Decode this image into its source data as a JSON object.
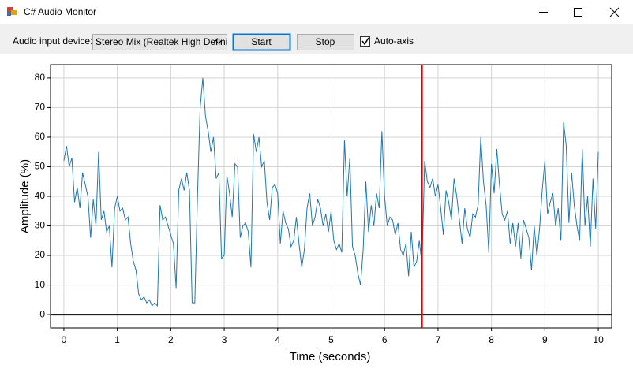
{
  "window": {
    "title": "C# Audio Monitor"
  },
  "controls": {
    "device_label": "Audio input device:",
    "device_value": "Stereo Mix (Realtek High Defini",
    "start": "Start",
    "stop": "Stop",
    "auto_axis": "Auto-axis",
    "auto_axis_checked": true
  },
  "chart_data": {
    "type": "line",
    "xlabel": "Time (seconds)",
    "ylabel": "Amplitude (%)",
    "xlim": [
      -0.25,
      10.25
    ],
    "ylim": [
      -4.5,
      84.5
    ],
    "xticks": [
      0,
      1,
      2,
      3,
      4,
      5,
      6,
      7,
      8,
      9,
      10
    ],
    "yticks": [
      0,
      10,
      20,
      30,
      40,
      50,
      60,
      70,
      80
    ],
    "grid": true,
    "marker_x": 6.7,
    "marker_color": "#e00000",
    "x": [
      0,
      0.05,
      0.1,
      0.15,
      0.2,
      0.25,
      0.3,
      0.35,
      0.4,
      0.45,
      0.5,
      0.55,
      0.6,
      0.65,
      0.7,
      0.75,
      0.8,
      0.85,
      0.9,
      0.95,
      1,
      1.05,
      1.1,
      1.15,
      1.2,
      1.25,
      1.3,
      1.35,
      1.4,
      1.45,
      1.5,
      1.55,
      1.6,
      1.65,
      1.7,
      1.75,
      1.8,
      1.85,
      1.9,
      1.95,
      2,
      2.05,
      2.1,
      2.15,
      2.2,
      2.25,
      2.3,
      2.35,
      2.4,
      2.45,
      2.5,
      2.55,
      2.6,
      2.65,
      2.7,
      2.75,
      2.8,
      2.85,
      2.9,
      2.95,
      3,
      3.05,
      3.1,
      3.15,
      3.2,
      3.25,
      3.3,
      3.35,
      3.4,
      3.45,
      3.5,
      3.55,
      3.6,
      3.65,
      3.7,
      3.75,
      3.8,
      3.85,
      3.9,
      3.95,
      4,
      4.05,
      4.1,
      4.15,
      4.2,
      4.25,
      4.3,
      4.35,
      4.4,
      4.45,
      4.5,
      4.55,
      4.6,
      4.65,
      4.7,
      4.75,
      4.8,
      4.85,
      4.9,
      4.95,
      5,
      5.05,
      5.1,
      5.15,
      5.2,
      5.25,
      5.3,
      5.35,
      5.4,
      5.45,
      5.5,
      5.55,
      5.6,
      5.65,
      5.7,
      5.75,
      5.8,
      5.85,
      5.9,
      5.95,
      6,
      6.05,
      6.1,
      6.15,
      6.2,
      6.25,
      6.3,
      6.35,
      6.4,
      6.45,
      6.5,
      6.55,
      6.6,
      6.65,
      6.7,
      6.75,
      6.8,
      6.85,
      6.9,
      6.95,
      7,
      7.05,
      7.1,
      7.15,
      7.2,
      7.25,
      7.3,
      7.35,
      7.4,
      7.45,
      7.5,
      7.55,
      7.6,
      7.65,
      7.7,
      7.75,
      7.8,
      7.85,
      7.9,
      7.95,
      8,
      8.05,
      8.1,
      8.15,
      8.2,
      8.25,
      8.3,
      8.35,
      8.4,
      8.45,
      8.5,
      8.55,
      8.6,
      8.65,
      8.7,
      8.75,
      8.8,
      8.85,
      8.9,
      8.95,
      9,
      9.05,
      9.1,
      9.15,
      9.2,
      9.25,
      9.3,
      9.35,
      9.4,
      9.45,
      9.5,
      9.55,
      9.6,
      9.65,
      9.7,
      9.75,
      9.8,
      9.85,
      9.9,
      9.95,
      10
    ],
    "series": [
      {
        "color": "#1f77b4",
        "values": [
          52,
          57,
          50,
          53,
          38,
          43,
          36,
          48,
          44,
          40,
          26,
          39,
          30,
          55,
          32,
          35,
          28,
          30,
          16,
          36,
          40,
          35,
          36,
          32,
          33,
          24,
          18,
          15,
          7,
          5,
          6,
          4,
          5,
          3,
          4,
          3,
          37,
          32,
          33,
          30,
          27,
          24,
          9,
          42,
          46,
          42,
          48,
          42,
          4,
          4,
          40,
          70,
          80,
          67,
          62,
          55,
          60,
          46,
          48,
          19,
          20,
          47,
          41,
          33,
          51,
          50,
          26,
          30,
          31,
          28,
          16,
          61,
          55,
          60,
          50,
          52,
          38,
          32,
          43,
          44,
          41,
          24,
          35,
          31,
          29,
          23,
          25,
          33,
          24,
          16,
          22,
          36,
          41,
          30,
          33,
          39,
          36,
          30,
          34,
          28,
          35,
          25,
          22,
          24,
          21,
          59,
          40,
          53,
          23,
          20,
          14,
          10,
          22,
          45,
          28,
          37,
          30,
          41,
          36,
          62,
          40,
          30,
          33,
          32,
          27,
          31,
          22,
          20,
          24,
          13,
          28,
          16,
          18,
          25,
          17,
          52,
          45,
          43,
          46,
          40,
          44,
          36,
          27,
          42,
          38,
          32,
          46,
          40,
          32,
          24,
          36,
          29,
          26,
          34,
          33,
          37,
          60,
          45,
          37,
          21,
          51,
          41,
          56,
          44,
          34,
          32,
          35,
          24,
          31,
          23,
          31,
          19,
          32,
          29,
          26,
          15,
          30,
          20,
          29,
          42,
          52,
          34,
          38,
          41,
          30,
          36,
          25,
          65,
          57,
          31,
          48,
          37,
          30,
          25,
          56,
          30,
          40,
          23,
          46,
          29,
          55
        ]
      }
    ]
  }
}
